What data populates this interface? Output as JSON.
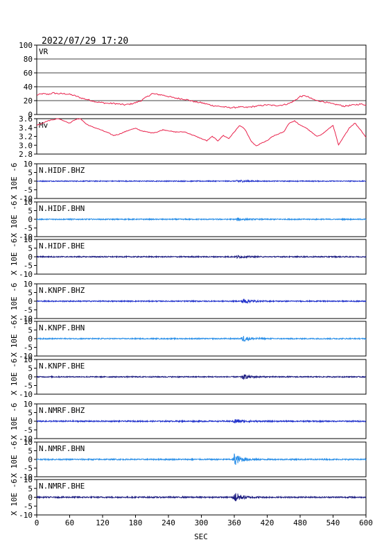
{
  "header": {
    "timestamp": "2022/07/29 17:20"
  },
  "colors": {
    "red": "#e8204a",
    "blue": "#2233cc",
    "light_blue": "#2a8fe8",
    "dark_blue": "#1a1a80",
    "frame": "#000000"
  },
  "chart_data": {
    "type": "line",
    "xlabel": "SEC",
    "xlim": [
      0,
      600
    ],
    "xticks": [
      "0",
      "60",
      "120",
      "180",
      "240",
      "300",
      "360",
      "420",
      "480",
      "540",
      "600"
    ],
    "panels": [
      {
        "name": "VR",
        "label": "VR",
        "color": "red",
        "ylim": [
          0,
          100
        ],
        "yticks": [
          "100",
          "80",
          "60",
          "40",
          "20",
          "0"
        ],
        "ylabel": "",
        "grid": true,
        "values": [
          28,
          30,
          29,
          31,
          30,
          30,
          29,
          27,
          24,
          22,
          20,
          18,
          17,
          16,
          16,
          15,
          14,
          15,
          17,
          20,
          25,
          30,
          29,
          28,
          26,
          24,
          23,
          22,
          20,
          18,
          17,
          15,
          13,
          12,
          11,
          10,
          10,
          11,
          10,
          11,
          12,
          13,
          14,
          13,
          13,
          14,
          16,
          20,
          26,
          27,
          23,
          20,
          19,
          17,
          15,
          14,
          12,
          13,
          14,
          15,
          14
        ]
      },
      {
        "name": "Mv",
        "label": "Mv",
        "color": "red",
        "ylim": [
          2.8,
          3.6
        ],
        "yticks": [
          "3.6",
          "3.4",
          "3.2",
          "3.0",
          "2.8"
        ],
        "ylabel": "",
        "grid": false,
        "values": [
          3.45,
          3.5,
          3.55,
          3.58,
          3.6,
          3.55,
          3.5,
          3.58,
          3.6,
          3.48,
          3.42,
          3.38,
          3.33,
          3.28,
          3.22,
          3.25,
          3.3,
          3.35,
          3.38,
          3.33,
          3.3,
          3.28,
          3.3,
          3.35,
          3.33,
          3.3,
          3.3,
          3.3,
          3.25,
          3.2,
          3.15,
          3.1,
          3.2,
          3.1,
          3.22,
          3.15,
          3.3,
          3.45,
          3.35,
          3.1,
          2.98,
          3.05,
          3.1,
          3.2,
          3.25,
          3.3,
          3.5,
          3.55,
          3.45,
          3.4,
          3.3,
          3.2,
          3.25,
          3.35,
          3.45,
          3.0,
          3.2,
          3.4,
          3.5,
          3.35,
          3.18
        ]
      },
      {
        "name": "N.HIDF.BHZ",
        "label": "N.HIDF.BHZ",
        "color": "blue",
        "ylim": [
          -10,
          10
        ],
        "yticks": [
          "10",
          "5",
          "0",
          "-5",
          "-10"
        ],
        "ylabel": "X 10E -6",
        "event_time": 365,
        "peak": 0.8,
        "noise": 0.25
      },
      {
        "name": "N.HIDF.BHN",
        "label": "N.HIDF.BHN",
        "color": "light_blue",
        "ylim": [
          -10,
          10
        ],
        "yticks": [
          "10",
          "5",
          "0",
          "-5",
          "-10"
        ],
        "ylabel": "X 10E -6",
        "event_time": 365,
        "peak": 0.8,
        "noise": 0.3
      },
      {
        "name": "N.HIDF.BHE",
        "label": "N.HIDF.BHE",
        "color": "dark_blue",
        "ylim": [
          -10,
          10
        ],
        "yticks": [
          "10",
          "5",
          "0",
          "-5",
          "-10"
        ],
        "ylabel": "X 10E -6",
        "event_time": 365,
        "peak": 0.8,
        "noise": 0.3
      },
      {
        "name": "N.KNPF.BHZ",
        "label": "N.KNPF.BHZ",
        "color": "blue",
        "ylim": [
          -10,
          10
        ],
        "yticks": [
          "10",
          "5",
          "0",
          "-5",
          "-10"
        ],
        "ylabel": "X 10E -6",
        "event_time": 375,
        "peak": 1.6,
        "noise": 0.3
      },
      {
        "name": "N.KNPF.BHN",
        "label": "N.KNPF.BHN",
        "color": "light_blue",
        "ylim": [
          -10,
          10
        ],
        "yticks": [
          "10",
          "5",
          "0",
          "-5",
          "-10"
        ],
        "ylabel": "X 10E -6",
        "event_time": 375,
        "peak": 2.0,
        "noise": 0.3
      },
      {
        "name": "N.KNPF.BHE",
        "label": "N.KNPF.BHE",
        "color": "dark_blue",
        "ylim": [
          -10,
          10
        ],
        "yticks": [
          "10",
          "5",
          "0",
          "-5",
          "-10"
        ],
        "ylabel": "X 10E -6",
        "event_time": 375,
        "peak": 1.5,
        "noise": 0.3
      },
      {
        "name": "N.NMRF.BHZ",
        "label": "N.NMRF.BHZ",
        "color": "blue",
        "ylim": [
          -10,
          10
        ],
        "yticks": [
          "10",
          "5",
          "0",
          "-5",
          "-10"
        ],
        "ylabel": "X 10E -6",
        "event_time": 360,
        "peak": 1.4,
        "noise": 0.35
      },
      {
        "name": "N.NMRF.BHN",
        "label": "N.NMRF.BHN",
        "color": "light_blue",
        "ylim": [
          -10,
          10
        ],
        "yticks": [
          "10",
          "5",
          "0",
          "-5",
          "-10"
        ],
        "ylabel": "X 10E -6",
        "event_time": 360,
        "peak": 3.5,
        "noise": 0.35
      },
      {
        "name": "N.NMRF.BHE",
        "label": "N.NMRF.BHE",
        "color": "dark_blue",
        "ylim": [
          -10,
          10
        ],
        "yticks": [
          "10",
          "5",
          "0",
          "-5",
          "-10"
        ],
        "ylabel": "X 10E -6",
        "event_time": 360,
        "peak": 3.0,
        "noise": 0.35
      }
    ]
  }
}
